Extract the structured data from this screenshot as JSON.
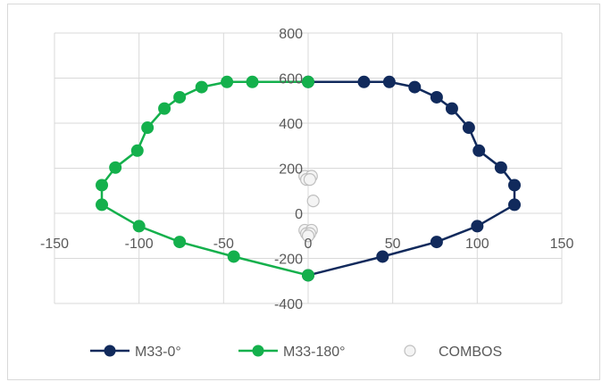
{
  "chart_data": {
    "type": "scatter",
    "title": "",
    "xlabel": "",
    "ylabel": "",
    "xlim": [
      -150,
      150
    ],
    "ylim": [
      -400,
      800
    ],
    "x_ticks": [
      "-150",
      "-100",
      "-50",
      "0",
      "50",
      "100",
      "150"
    ],
    "y_ticks": [
      "-400",
      "-200",
      "0",
      "200",
      "400",
      "600",
      "800"
    ],
    "grid": true,
    "legend_position": "bottom",
    "series": [
      {
        "name": "M33-0°",
        "color": "#112a5c",
        "marker": "filled-circle",
        "line": true,
        "points": [
          [
            0,
            -275
          ],
          [
            44,
            -192
          ],
          [
            76,
            -127
          ],
          [
            100,
            -57
          ],
          [
            122,
            38
          ],
          [
            122,
            125
          ],
          [
            114,
            203
          ],
          [
            101,
            278
          ],
          [
            95,
            380
          ],
          [
            85,
            465
          ],
          [
            76,
            515
          ],
          [
            63,
            560
          ],
          [
            48,
            583
          ],
          [
            33,
            583
          ],
          [
            0,
            583
          ]
        ]
      },
      {
        "name": "M33-180°",
        "color": "#14b04c",
        "marker": "filled-circle",
        "line": true,
        "points": [
          [
            0,
            583
          ],
          [
            -33,
            583
          ],
          [
            -48,
            583
          ],
          [
            -63,
            560
          ],
          [
            -76,
            515
          ],
          [
            -85,
            465
          ],
          [
            -95,
            380
          ],
          [
            -101,
            278
          ],
          [
            -114,
            203
          ],
          [
            -122,
            125
          ],
          [
            -122,
            38
          ],
          [
            -100,
            -57
          ],
          [
            -76,
            -127
          ],
          [
            -44,
            -192
          ],
          [
            0,
            -275
          ]
        ]
      },
      {
        "name": "COMBOS",
        "color": "#d9d9d9",
        "marker": "hollow-circle",
        "line": false,
        "points": [
          [
            -2,
            165
          ],
          [
            2,
            165
          ],
          [
            -1,
            150
          ],
          [
            1,
            150
          ],
          [
            3,
            55
          ],
          [
            -2,
            -75
          ],
          [
            2,
            -75
          ],
          [
            -1,
            -90
          ],
          [
            1,
            -90
          ],
          [
            0,
            -100
          ]
        ]
      }
    ]
  }
}
